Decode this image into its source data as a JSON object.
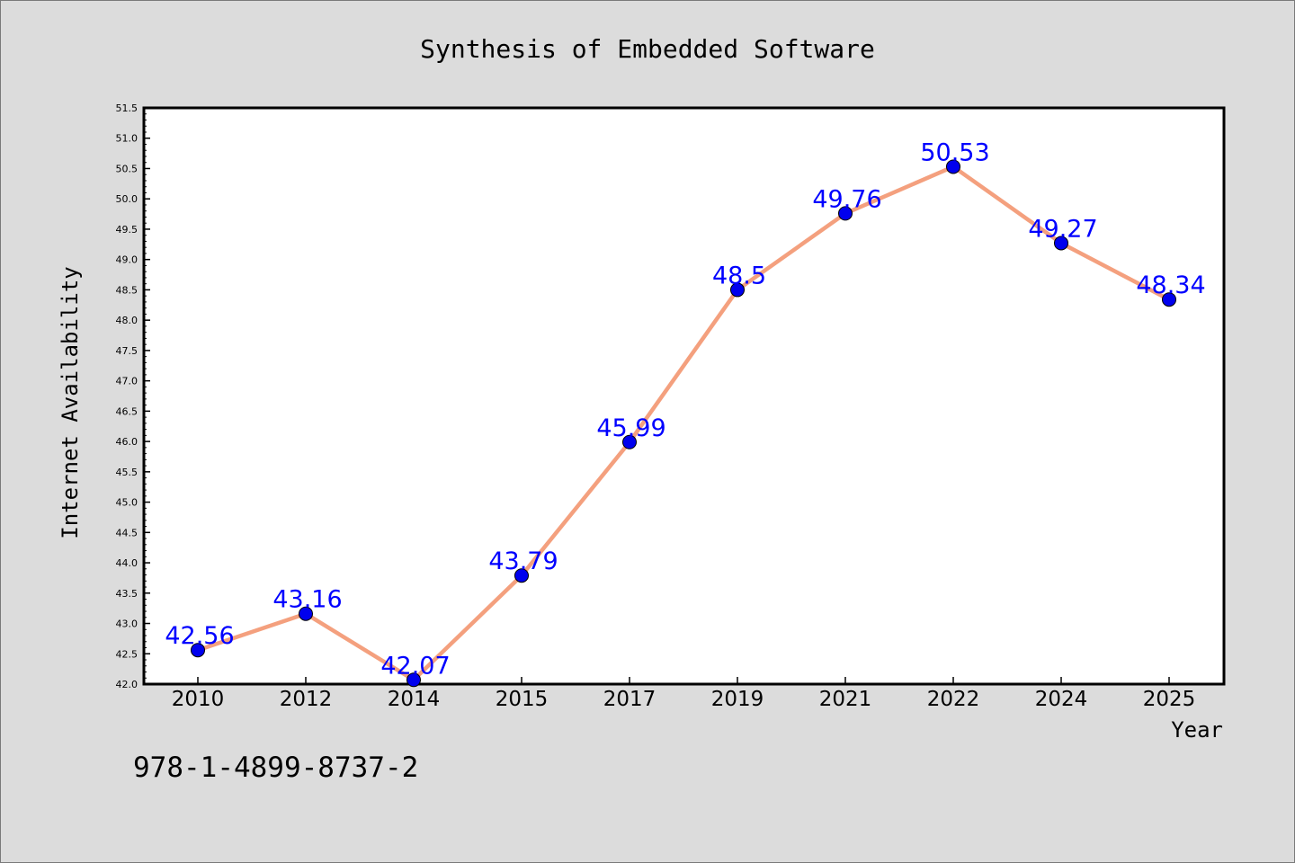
{
  "chart_data": {
    "type": "line",
    "title": "Synthesis of Embedded Software",
    "xlabel": "Year",
    "ylabel": "Internet Availability",
    "categories": [
      "2010",
      "2012",
      "2014",
      "2015",
      "2017",
      "2019",
      "2021",
      "2022",
      "2024",
      "2025"
    ],
    "series": [
      {
        "values": [
          42.56,
          43.16,
          42.07,
          43.79,
          45.99,
          48.5,
          49.76,
          50.53,
          49.27,
          48.34
        ],
        "data_labels": [
          "42.56",
          "43.16",
          "42.07",
          "43.79",
          "45.99",
          "48.5",
          "49.76",
          "50.53",
          "49.27",
          "48.34"
        ]
      }
    ],
    "ylim": [
      42.0,
      51.5
    ],
    "yticks": [
      "42.0",
      "42.5",
      "43.0",
      "43.5",
      "44.0",
      "44.5",
      "45.0",
      "45.5",
      "46.0",
      "46.5",
      "47.0",
      "47.5",
      "48.0",
      "48.5",
      "49.0",
      "49.5",
      "50.0",
      "50.5",
      "51.0",
      "51.5"
    ],
    "grid": false,
    "legend": "none",
    "colors": {
      "line": "#f4a07e",
      "marker": "#0000ee",
      "data_label": "#0000ff",
      "background": "#dcdcdc",
      "plot_area": "#ffffff"
    }
  },
  "footer_note": "978-1-4899-8737-2"
}
